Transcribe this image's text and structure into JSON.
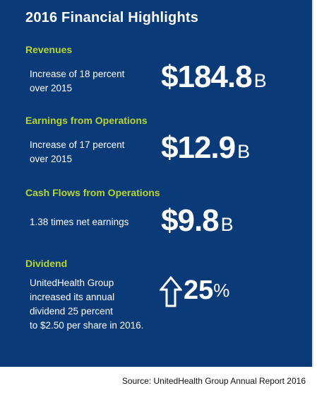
{
  "title": "2016 Financial Highlights",
  "colors": {
    "panel_background": "#0b3a78",
    "heading_accent": "#b7d531",
    "text": "#ffffff"
  },
  "revenues": {
    "heading": "Revenues",
    "desc_line1": "Increase of 18 percent",
    "desc_line2": "over 2015",
    "value": "$184.8",
    "unit": "B"
  },
  "earnings": {
    "heading": "Earnings from Operations",
    "desc_line1": "Increase of 17 percent",
    "desc_line2": "over 2015",
    "value": "$12.9",
    "unit": "B"
  },
  "cash_flows": {
    "heading": "Cash Flows from Operations",
    "desc": "1.38 times net earnings",
    "value": "$9.8",
    "unit": "B"
  },
  "dividend": {
    "heading": "Dividend",
    "desc_line1": "UnitedHealth Group",
    "desc_line2": "increased its annual",
    "desc_line3": "dividend 25 percent",
    "desc_line4": "to $2.50 per share in 2016.",
    "value": "25",
    "unit": "%",
    "icon": "up-arrow-icon"
  },
  "source": "Source: UnitedHealth Group Annual Report 2016"
}
